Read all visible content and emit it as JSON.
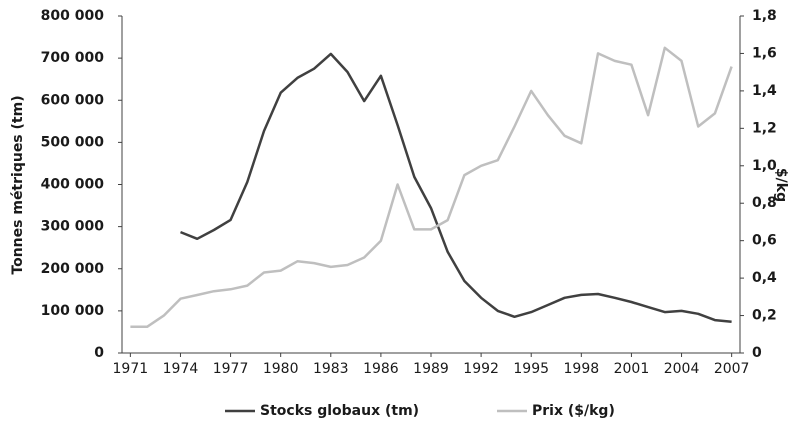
{
  "chart_data": {
    "type": "line",
    "x": [
      1971,
      1972,
      1973,
      1974,
      1975,
      1976,
      1977,
      1978,
      1979,
      1980,
      1981,
      1982,
      1983,
      1984,
      1985,
      1986,
      1987,
      1988,
      1989,
      1990,
      1991,
      1992,
      1993,
      1994,
      1995,
      1996,
      1997,
      1998,
      1999,
      2000,
      2001,
      2002,
      2003,
      2004,
      2005,
      2006,
      2007
    ],
    "xlim": [
      1970.5,
      2007.5
    ],
    "xticks": [
      1971,
      1974,
      1977,
      1980,
      1983,
      1986,
      1989,
      1992,
      1995,
      1998,
      2001,
      2004,
      2007
    ],
    "ylabel": "Tonnes métriques (tm)",
    "y2label": "$/kg",
    "ylim": [
      0,
      800000
    ],
    "yticks": [
      0,
      {
        "value": 100000,
        "label": "100 000"
      },
      {
        "value": 200000,
        "label": "200 000"
      },
      {
        "value": 300000,
        "label": "300 000"
      },
      {
        "value": 400000,
        "label": "400 000"
      },
      {
        "value": 500000,
        "label": "500 000"
      },
      {
        "value": 600000,
        "label": "600 000"
      },
      {
        "value": 700000,
        "label": "700 000"
      },
      {
        "value": 800000,
        "label": "800 000"
      }
    ],
    "y2lim": [
      0,
      1.8
    ],
    "y2ticks": [
      0,
      {
        "value": 0.2,
        "label": "0,2"
      },
      {
        "value": 0.4,
        "label": "0,4"
      },
      {
        "value": 0.6,
        "label": "0,6"
      },
      {
        "value": 0.8,
        "label": "0,8"
      },
      {
        "value": 1.0,
        "label": "1,0"
      },
      {
        "value": 1.2,
        "label": "1,2"
      },
      {
        "value": 1.4,
        "label": "1,4"
      },
      {
        "value": 1.6,
        "label": "1,6"
      },
      {
        "value": 1.8,
        "label": "1,8"
      }
    ],
    "legend": "bottom",
    "series": [
      {
        "name": "Stocks globaux (tm)",
        "color": "#404040",
        "axis": "y",
        "values": [
          null,
          null,
          null,
          287000,
          271000,
          292000,
          316000,
          406000,
          527000,
          618000,
          653000,
          675000,
          710000,
          667000,
          598000,
          658000,
          541000,
          418000,
          344000,
          240000,
          171000,
          131000,
          100000,
          86000,
          97000,
          114000,
          131000,
          138000,
          140000,
          131000,
          121000,
          109000,
          97000,
          100000,
          93000,
          78000,
          74000
        ]
      },
      {
        "name": "Prix ($/kg)",
        "color": "#bfbfbf",
        "axis": "y2",
        "values": [
          0.14,
          0.14,
          0.2,
          0.29,
          0.31,
          0.33,
          0.34,
          0.36,
          0.43,
          0.44,
          0.49,
          0.48,
          0.46,
          0.47,
          0.51,
          0.6,
          0.9,
          0.66,
          0.66,
          0.71,
          0.95,
          1.0,
          1.03,
          1.21,
          1.4,
          1.27,
          1.16,
          1.12,
          1.6,
          1.56,
          1.54,
          1.27,
          1.63,
          1.56,
          1.21,
          1.28,
          1.53
        ]
      }
    ]
  }
}
